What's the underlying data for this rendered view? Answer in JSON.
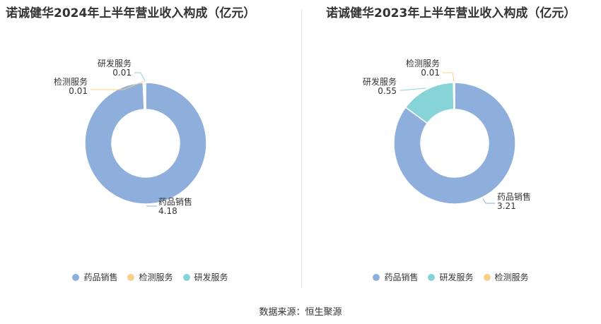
{
  "chart_data": [
    {
      "type": "pie",
      "title": "诺诚健华2024年上半年营业收入构成（亿元）",
      "slices": [
        {
          "label": "药品销售",
          "value": 4.18,
          "display": "4.18",
          "color": "#8eaedc"
        },
        {
          "label": "检测服务",
          "value": 0.01,
          "display": "0.01",
          "color": "#f7d08a"
        },
        {
          "label": "研发服务",
          "value": 0.01,
          "display": "0.01",
          "color": "#86d4d8"
        }
      ],
      "legend": [
        "药品销售",
        "检测服务",
        "研发服务"
      ],
      "legend_position": "bottom"
    },
    {
      "type": "pie",
      "title": "诺诚健华2023年上半年营业收入构成（亿元）",
      "slices": [
        {
          "label": "药品销售",
          "value": 3.21,
          "display": "3.21",
          "color": "#8eaedc"
        },
        {
          "label": "研发服务",
          "value": 0.55,
          "display": "0.55",
          "color": "#86d4d8"
        },
        {
          "label": "检测服务",
          "value": 0.01,
          "display": "0.01",
          "color": "#f7d08a"
        }
      ],
      "legend": [
        "药品销售",
        "研发服务",
        "检测服务"
      ],
      "legend_position": "bottom"
    }
  ],
  "source": "数据来源：恒生聚源"
}
